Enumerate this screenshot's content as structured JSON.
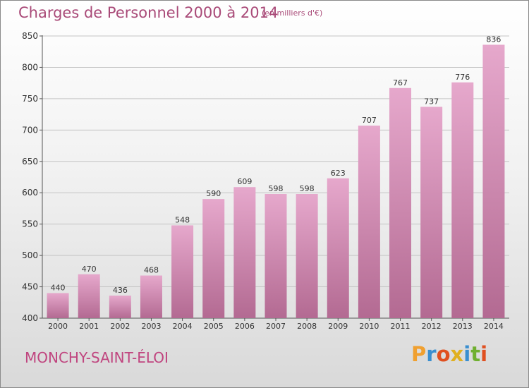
{
  "header": {
    "title": "Charges de Personnel 2000 à 2014",
    "subtitle": "(en milliers d'€)"
  },
  "footer": {
    "commune": "MONCHY-SAINT-ÉLOI",
    "brand": "Proxiti"
  },
  "colors": {
    "title": "#a94a78",
    "bar_top": "#e6a8cc",
    "bar_bottom": "#b36a92",
    "brand_letters": [
      "#f0a030",
      "#3a8fd0",
      "#e05020",
      "#e0b020",
      "#3a8fd0",
      "#70b030",
      "#e05020"
    ]
  },
  "chart_data": {
    "type": "bar",
    "categories": [
      "2000",
      "2001",
      "2002",
      "2003",
      "2004",
      "2005",
      "2006",
      "2007",
      "2008",
      "2009",
      "2010",
      "2011",
      "2012",
      "2013",
      "2014"
    ],
    "values": [
      440,
      470,
      436,
      468,
      548,
      590,
      609,
      598,
      598,
      623,
      707,
      767,
      737,
      776,
      836
    ],
    "ylim": [
      400,
      850
    ],
    "yticks": [
      400,
      450,
      500,
      550,
      600,
      650,
      700,
      750,
      800,
      850
    ],
    "grid": true
  }
}
